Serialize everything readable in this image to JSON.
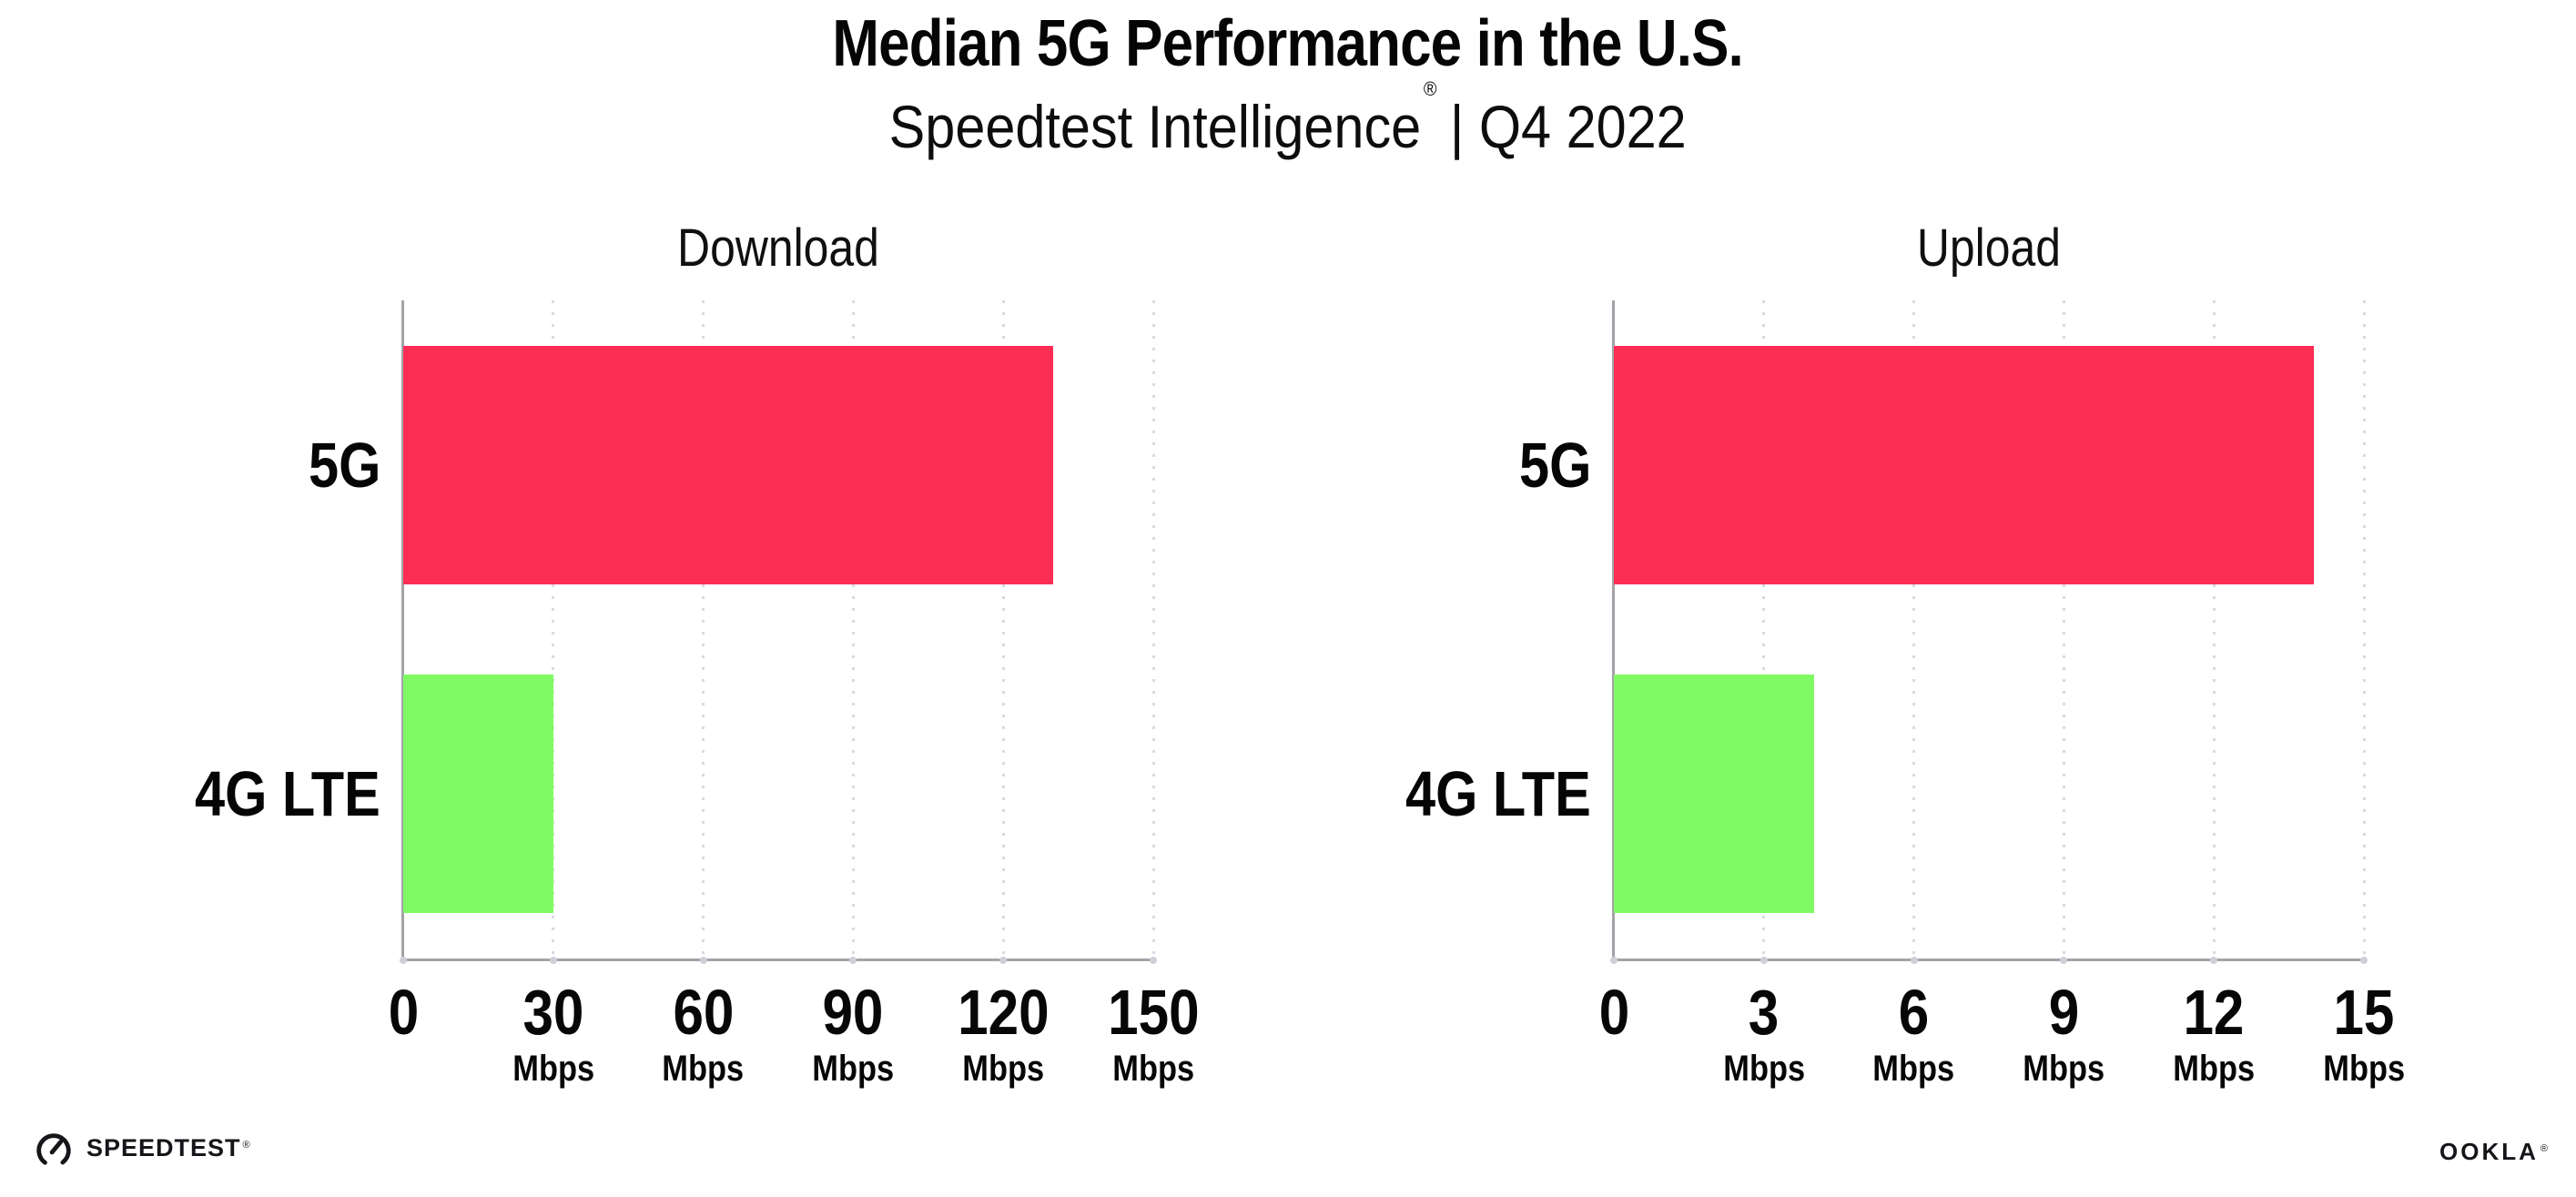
{
  "header": {
    "title": "Median 5G Performance in the U.S.",
    "subtitle_brand": "Speedtest Intelligence",
    "subtitle_reg": "®",
    "subtitle_rest": "| Q4 2022"
  },
  "chart_data": [
    {
      "type": "bar",
      "orientation": "horizontal",
      "title": "Download",
      "categories": [
        "5G",
        "4G LTE"
      ],
      "values": [
        130,
        30
      ],
      "unit": "Mbps",
      "xlabel": "",
      "xlim": [
        0,
        150
      ],
      "xticks": [
        0,
        30,
        60,
        90,
        120,
        150
      ],
      "bar_colors": [
        "#FC2D55",
        "#80FA64"
      ],
      "grid": "vertical-dotted",
      "legend_position": "none"
    },
    {
      "type": "bar",
      "orientation": "horizontal",
      "title": "Upload",
      "categories": [
        "5G",
        "4G LTE"
      ],
      "values": [
        14,
        4
      ],
      "unit": "Mbps",
      "xlabel": "",
      "xlim": [
        0,
        15
      ],
      "xticks": [
        0,
        3,
        6,
        9,
        12,
        15
      ],
      "bar_colors": [
        "#FC2D55",
        "#80FA64"
      ],
      "grid": "vertical-dotted",
      "legend_position": "none"
    }
  ],
  "footer": {
    "speedtest_icon": "speedtest-gauge-icon",
    "speedtest_label": "SPEEDTEST",
    "speedtest_reg": "®",
    "ookla_label": "OOKLA",
    "ookla_reg": "®"
  },
  "colors": {
    "bar_5g": "#FC2D55",
    "bar_4g_lte": "#80FA64",
    "axis": "#a3a3a8",
    "gridline": "#d9d9e2",
    "text": "#0a0a0a",
    "logo": "#15151a",
    "background": "#ffffff"
  }
}
